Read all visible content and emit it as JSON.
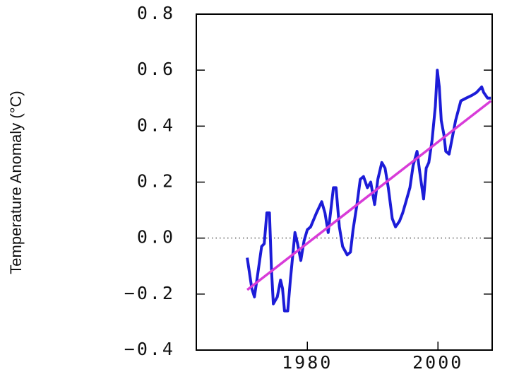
{
  "chart_data": {
    "type": "line",
    "y_label": "Temperature Anomaly (°C)",
    "xlim": [
      1963,
      2008.3
    ],
    "xticks": [
      1980,
      2000
    ],
    "ylim": [
      -0.4,
      0.8
    ],
    "yticks": [
      {
        "value": -0.4,
        "label": "−0.4"
      },
      {
        "value": -0.2,
        "label": "−0.2"
      },
      {
        "value": 0,
        "label": "0.0"
      },
      {
        "value": 0.2,
        "label": "0.2"
      },
      {
        "value": 0.4,
        "label": "0.4"
      },
      {
        "value": 0.6,
        "label": "0.6"
      },
      0.8
    ],
    "zero_line": true,
    "series": [
      {
        "color": "#1c1cd8",
        "x": [
          1970.8,
          1971.5,
          1971.9,
          1972.4,
          1973.0,
          1973.4,
          1973.8,
          1974.2,
          1974.5,
          1974.8,
          1975.4,
          1975.9,
          1976.2,
          1976.5,
          1977.0,
          1977.4,
          1978.1,
          1978.5,
          1979.0,
          1979.5,
          1980.0,
          1980.5,
          1981.4,
          1982.2,
          1982.7,
          1983.2,
          1984.0,
          1984.4,
          1984.9,
          1985.4,
          1986.1,
          1986.6,
          1987.0,
          1987.6,
          1988.1,
          1988.6,
          1989.2,
          1989.7,
          1990.3,
          1990.8,
          1991.4,
          1991.9,
          1992.4,
          1993.0,
          1993.5,
          1994.1,
          1994.6,
          1995.1,
          1995.7,
          1996.2,
          1996.8,
          1997.3,
          1997.8,
          1998.2,
          1998.6,
          1999.1,
          1999.6,
          1999.9,
          2000.2,
          2000.5,
          2000.9,
          2001.2,
          2001.7,
          2002.2,
          2002.7,
          2003.5,
          2004.3,
          2005.2,
          2005.9,
          2006.7,
          2007.0,
          2007.6,
          2008.1
        ],
        "values": [
          -0.07,
          -0.18,
          -0.21,
          -0.13,
          -0.03,
          -0.02,
          0.09,
          0.09,
          -0.11,
          -0.235,
          -0.21,
          -0.15,
          -0.18,
          -0.26,
          -0.26,
          -0.15,
          0.02,
          -0.02,
          -0.08,
          -0.01,
          0.03,
          0.04,
          0.09,
          0.13,
          0.09,
          0.02,
          0.18,
          0.18,
          0.04,
          -0.03,
          -0.06,
          -0.05,
          0.03,
          0.12,
          0.21,
          0.22,
          0.18,
          0.2,
          0.12,
          0.21,
          0.27,
          0.25,
          0.18,
          0.07,
          0.04,
          0.06,
          0.09,
          0.13,
          0.18,
          0.26,
          0.31,
          0.22,
          0.14,
          0.25,
          0.27,
          0.35,
          0.47,
          0.6,
          0.54,
          0.42,
          0.37,
          0.31,
          0.3,
          0.36,
          0.42,
          0.49,
          0.5,
          0.51,
          0.52,
          0.54,
          0.52,
          0.5,
          0.5
        ]
      },
      {
        "color": "#d83cd8",
        "x": [
          1970.8,
          2008.1
        ],
        "values": [
          -0.185,
          0.49
        ]
      }
    ]
  }
}
